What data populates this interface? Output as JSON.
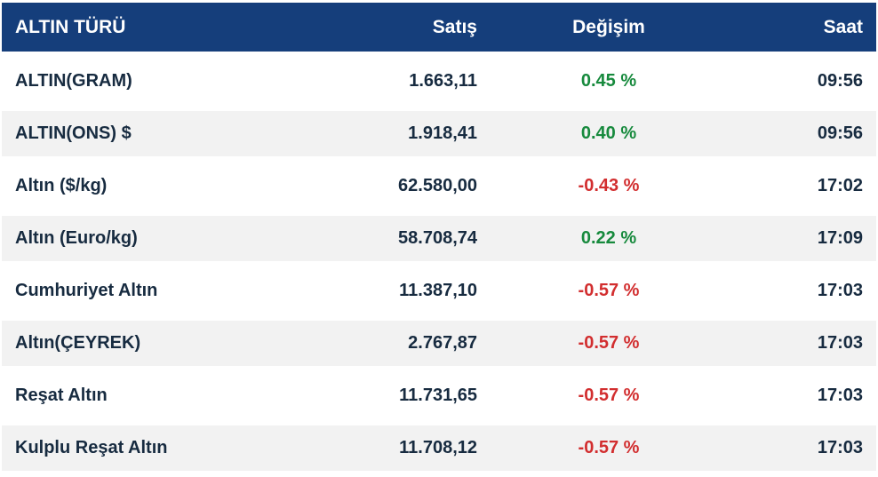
{
  "table": {
    "columns": [
      {
        "label": "ALTIN TÜRÜ",
        "align": "left"
      },
      {
        "label": "Satış",
        "align": "right"
      },
      {
        "label": "Değişim",
        "align": "center"
      },
      {
        "label": "Saat",
        "align": "right"
      }
    ],
    "rows": [
      {
        "name": "ALTIN(GRAM)",
        "satis": "1.663,11",
        "degisim": "0.45 %",
        "direction": "up",
        "saat": "09:56"
      },
      {
        "name": "ALTIN(ONS) $",
        "satis": "1.918,41",
        "degisim": "0.40 %",
        "direction": "up",
        "saat": "09:56"
      },
      {
        "name": "Altın ($/kg)",
        "satis": "62.580,00",
        "degisim": "-0.43 %",
        "direction": "down",
        "saat": "17:02"
      },
      {
        "name": "Altın (Euro/kg)",
        "satis": "58.708,74",
        "degisim": "0.22 %",
        "direction": "up",
        "saat": "17:09"
      },
      {
        "name": "Cumhuriyet Altın",
        "satis": "11.387,10",
        "degisim": "-0.57 %",
        "direction": "down",
        "saat": "17:03"
      },
      {
        "name": "Altın(ÇEYREK)",
        "satis": "2.767,87",
        "degisim": "-0.57 %",
        "direction": "down",
        "saat": "17:03"
      },
      {
        "name": "Reşat Altın",
        "satis": "11.731,65",
        "degisim": "-0.57 %",
        "direction": "down",
        "saat": "17:03"
      },
      {
        "name": "Kulplu Reşat Altın",
        "satis": "11.708,12",
        "degisim": "-0.57 %",
        "direction": "down",
        "saat": "17:03"
      }
    ],
    "colors": {
      "header_bg": "#153E7B",
      "header_text": "#ffffff",
      "row_text": "#172B40",
      "row_alt_bg": "#F2F2F2",
      "up": "#178A3D",
      "down": "#D22E2F"
    }
  }
}
